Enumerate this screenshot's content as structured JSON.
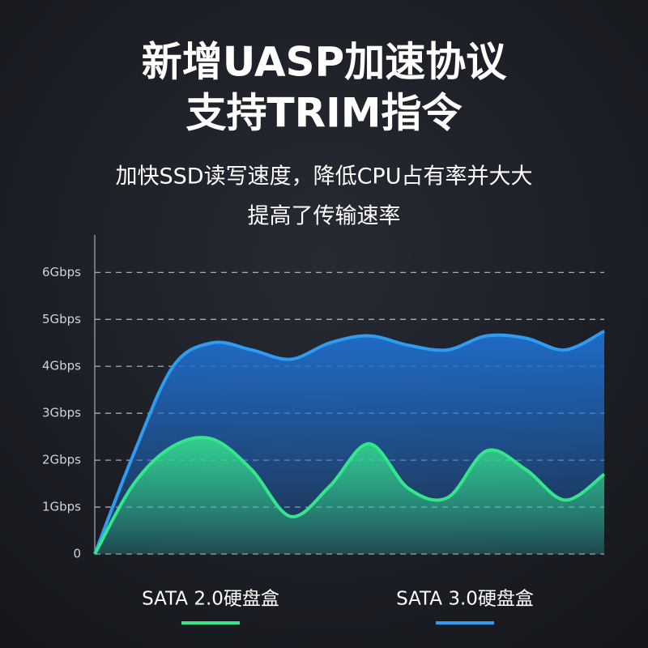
{
  "chart_data": {
    "type": "area",
    "title": [
      "新增UASP加速协议",
      "支持TRIM指令"
    ],
    "subtitle": [
      "加快SSD读写速度，降低CPU占有率并大大",
      "提高了传输速率"
    ],
    "categories": [
      null,
      null,
      null,
      null,
      null,
      null,
      null,
      null,
      null,
      null,
      null,
      null,
      null,
      null
    ],
    "series": [
      {
        "name": "SATA 2.0硬盘盒",
        "color": "#35e58c",
        "values": [
          0,
          1.5,
          2.3,
          2.45,
          1.8,
          0.8,
          1.45,
          2.35,
          1.4,
          1.2,
          2.2,
          1.8,
          1.15,
          1.7
        ]
      },
      {
        "name": "SATA 3.0硬盘盒",
        "color": "#2f9cf2",
        "values": [
          0,
          2.15,
          4.0,
          4.5,
          4.35,
          4.15,
          4.5,
          4.65,
          4.45,
          4.35,
          4.65,
          4.6,
          4.35,
          4.75
        ]
      }
    ],
    "ylim": [
      0,
      6.8
    ],
    "yticks": [
      0,
      {
        "value": 1,
        "label": "1Gbps"
      },
      {
        "value": 2,
        "label": "2Gbps"
      },
      {
        "value": 3,
        "label": "3Gbps"
      },
      {
        "value": 4,
        "label": "4Gbps"
      },
      {
        "value": 5,
        "label": "5Gbps"
      },
      {
        "value": 6,
        "label": "6Gbps"
      }
    ],
    "grid": true
  }
}
